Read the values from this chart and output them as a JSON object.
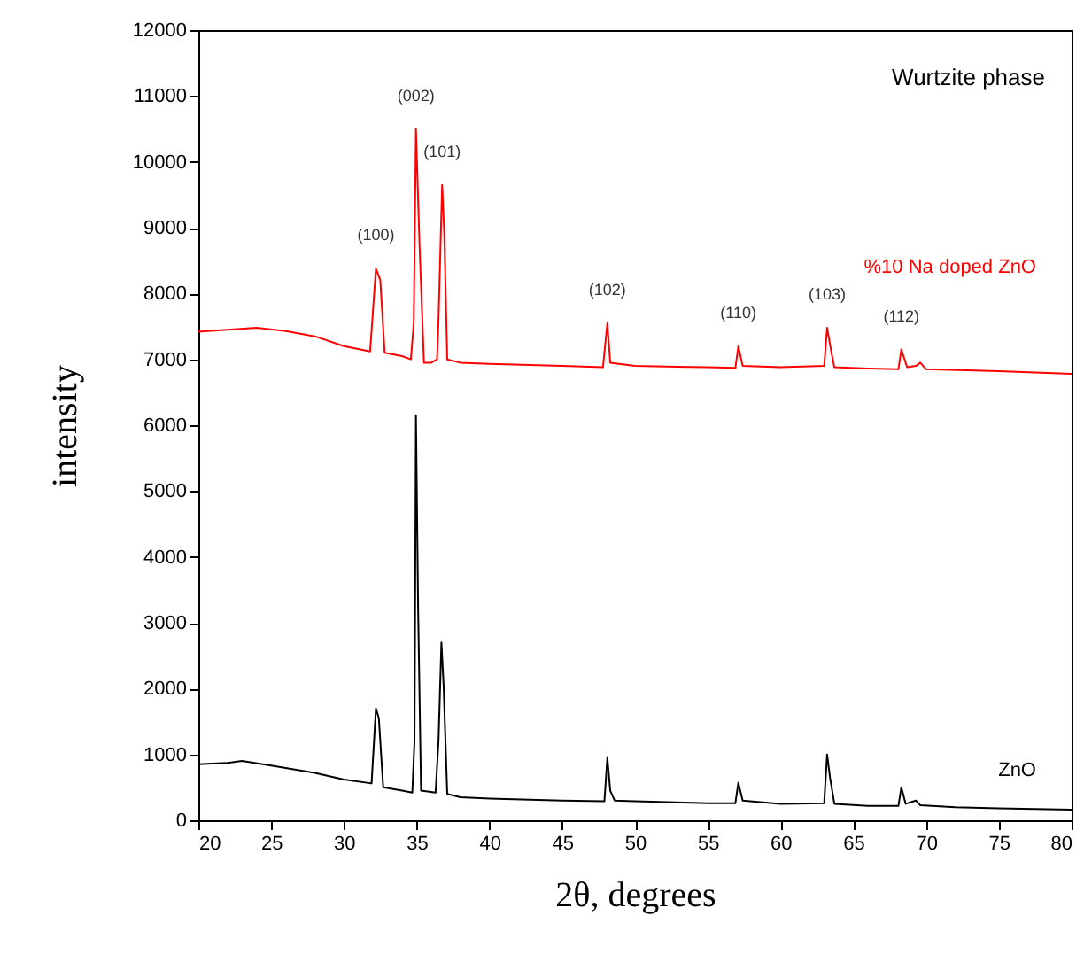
{
  "chart_data": {
    "type": "line",
    "xlabel": "2θ, degrees",
    "ylabel": "intensity",
    "xlim": [
      20,
      80
    ],
    "xticks": [
      20,
      25,
      30,
      35,
      40,
      45,
      50,
      55,
      60,
      65,
      70,
      75,
      80
    ],
    "ylim": [
      0,
      12000
    ],
    "yticks": [
      0,
      1000,
      2000,
      3000,
      4000,
      5000,
      6000,
      7000,
      8000,
      9000,
      10000,
      11000,
      12000
    ],
    "grid": false,
    "legend": false,
    "marker": "none",
    "line_style": "solid",
    "series": [
      {
        "name": "%10 Na doped ZnO",
        "color": "#ff0000",
        "x": [
          20,
          22,
          24,
          26,
          28,
          30,
          31.8,
          32.2,
          32.5,
          32.8,
          34,
          34.6,
          34.8,
          34.95,
          35.2,
          35.5,
          36,
          36.4,
          36.5,
          36.75,
          36.9,
          37.1,
          38,
          40,
          45,
          47.8,
          48.1,
          48.3,
          50,
          55,
          56.9,
          57.1,
          57.4,
          60,
          63,
          63.2,
          63.5,
          63.7,
          66,
          68.1,
          68.3,
          68.7,
          69.3,
          69.6,
          70,
          75,
          80
        ],
        "values": [
          7420,
          7450,
          7480,
          7430,
          7350,
          7200,
          7120,
          8380,
          8200,
          7100,
          7050,
          7000,
          7550,
          10500,
          8700,
          6950,
          6950,
          7000,
          7600,
          9650,
          8900,
          7000,
          6950,
          6930,
          6900,
          6880,
          7550,
          6950,
          6900,
          6880,
          6870,
          7200,
          6900,
          6880,
          6900,
          7480,
          7100,
          6880,
          6860,
          6850,
          7150,
          6880,
          6900,
          6950,
          6850,
          6820,
          6780
        ]
      },
      {
        "name": "ZnO",
        "color": "#000000",
        "x": [
          20,
          22,
          23,
          25,
          28,
          30,
          31.9,
          32.2,
          32.4,
          32.7,
          34,
          34.7,
          34.85,
          34.95,
          35.1,
          35.3,
          36.3,
          36.5,
          36.7,
          36.85,
          37.1,
          38,
          40,
          45,
          47.9,
          48.1,
          48.3,
          48.6,
          50,
          55,
          56.9,
          57.1,
          57.4,
          60,
          63,
          63.2,
          63.4,
          63.7,
          66,
          68.1,
          68.3,
          68.6,
          69.3,
          69.6,
          72,
          75,
          80
        ],
        "values": [
          850,
          870,
          900,
          830,
          720,
          620,
          560,
          1700,
          1550,
          500,
          450,
          420,
          1200,
          6150,
          3200,
          450,
          420,
          1200,
          2700,
          2050,
          400,
          350,
          330,
          300,
          290,
          950,
          450,
          300,
          290,
          260,
          260,
          570,
          300,
          250,
          260,
          1000,
          650,
          250,
          220,
          220,
          500,
          250,
          300,
          230,
          200,
          180,
          160
        ]
      }
    ],
    "annotations": [
      "Wurtzite phase",
      {
        "text": "(100)",
        "x": 32.2,
        "y": 8380
      },
      {
        "text": "(002)",
        "x": 34.95,
        "y": 10500
      },
      {
        "text": "(101)",
        "x": 36.75,
        "y": 9650
      },
      {
        "text": "(102)",
        "x": 48.1,
        "y": 7550
      },
      {
        "text": "(110)",
        "x": 57.1,
        "y": 7200
      },
      {
        "text": "(103)",
        "x": 63.2,
        "y": 7480
      },
      {
        "text": "(112)",
        "x": 68.3,
        "y": 7150
      }
    ]
  }
}
